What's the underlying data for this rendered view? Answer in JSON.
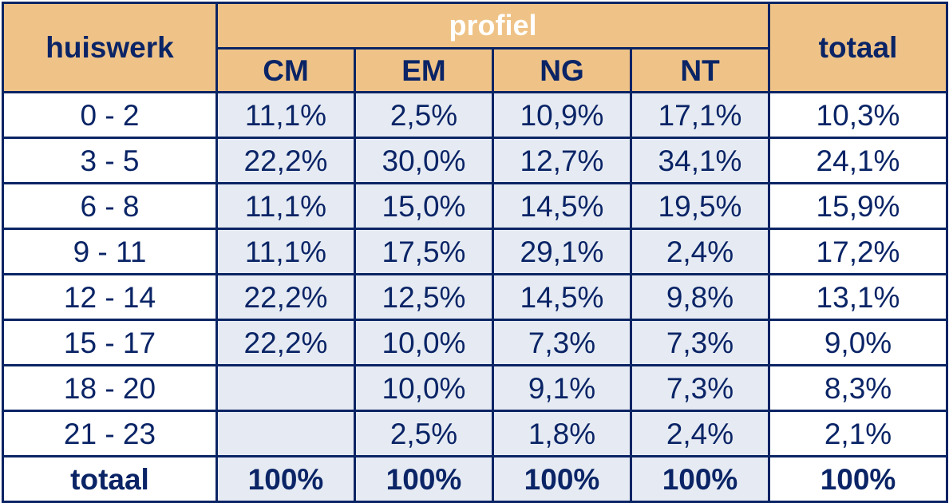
{
  "header": {
    "row_label": "huiswerk",
    "group_label": "profiel",
    "total_label": "totaal",
    "columns": [
      "CM",
      "EM",
      "NG",
      "NT"
    ]
  },
  "rows": [
    {
      "label": "0 - 2",
      "values": [
        "11,1%",
        "2,5%",
        "10,9%",
        "17,1%"
      ],
      "total": "10,3%"
    },
    {
      "label": "3 - 5",
      "values": [
        "22,2%",
        "30,0%",
        "12,7%",
        "34,1%"
      ],
      "total": "24,1%"
    },
    {
      "label": "6 - 8",
      "values": [
        "11,1%",
        "15,0%",
        "14,5%",
        "19,5%"
      ],
      "total": "15,9%"
    },
    {
      "label": "9 - 11",
      "values": [
        "11,1%",
        "17,5%",
        "29,1%",
        "2,4%"
      ],
      "total": "17,2%"
    },
    {
      "label": "12 - 14",
      "values": [
        "22,2%",
        "12,5%",
        "14,5%",
        "9,8%"
      ],
      "total": "13,1%"
    },
    {
      "label": "15 - 17",
      "values": [
        "22,2%",
        "10,0%",
        "7,3%",
        "7,3%"
      ],
      "total": "9,0%"
    },
    {
      "label": "18 - 20",
      "values": [
        "",
        "10,0%",
        "9,1%",
        "7,3%"
      ],
      "total": "8,3%"
    },
    {
      "label": "21 - 23",
      "values": [
        "",
        "2,5%",
        "1,8%",
        "2,4%"
      ],
      "total": "2,1%"
    }
  ],
  "footer": {
    "label": "totaal",
    "values": [
      "100%",
      "100%",
      "100%",
      "100%"
    ],
    "total": "100%"
  },
  "colors": {
    "header_bg": "#efc387",
    "cell_bg": "#e6ebf3",
    "text": "#0a2466",
    "border": "#0b2464"
  }
}
